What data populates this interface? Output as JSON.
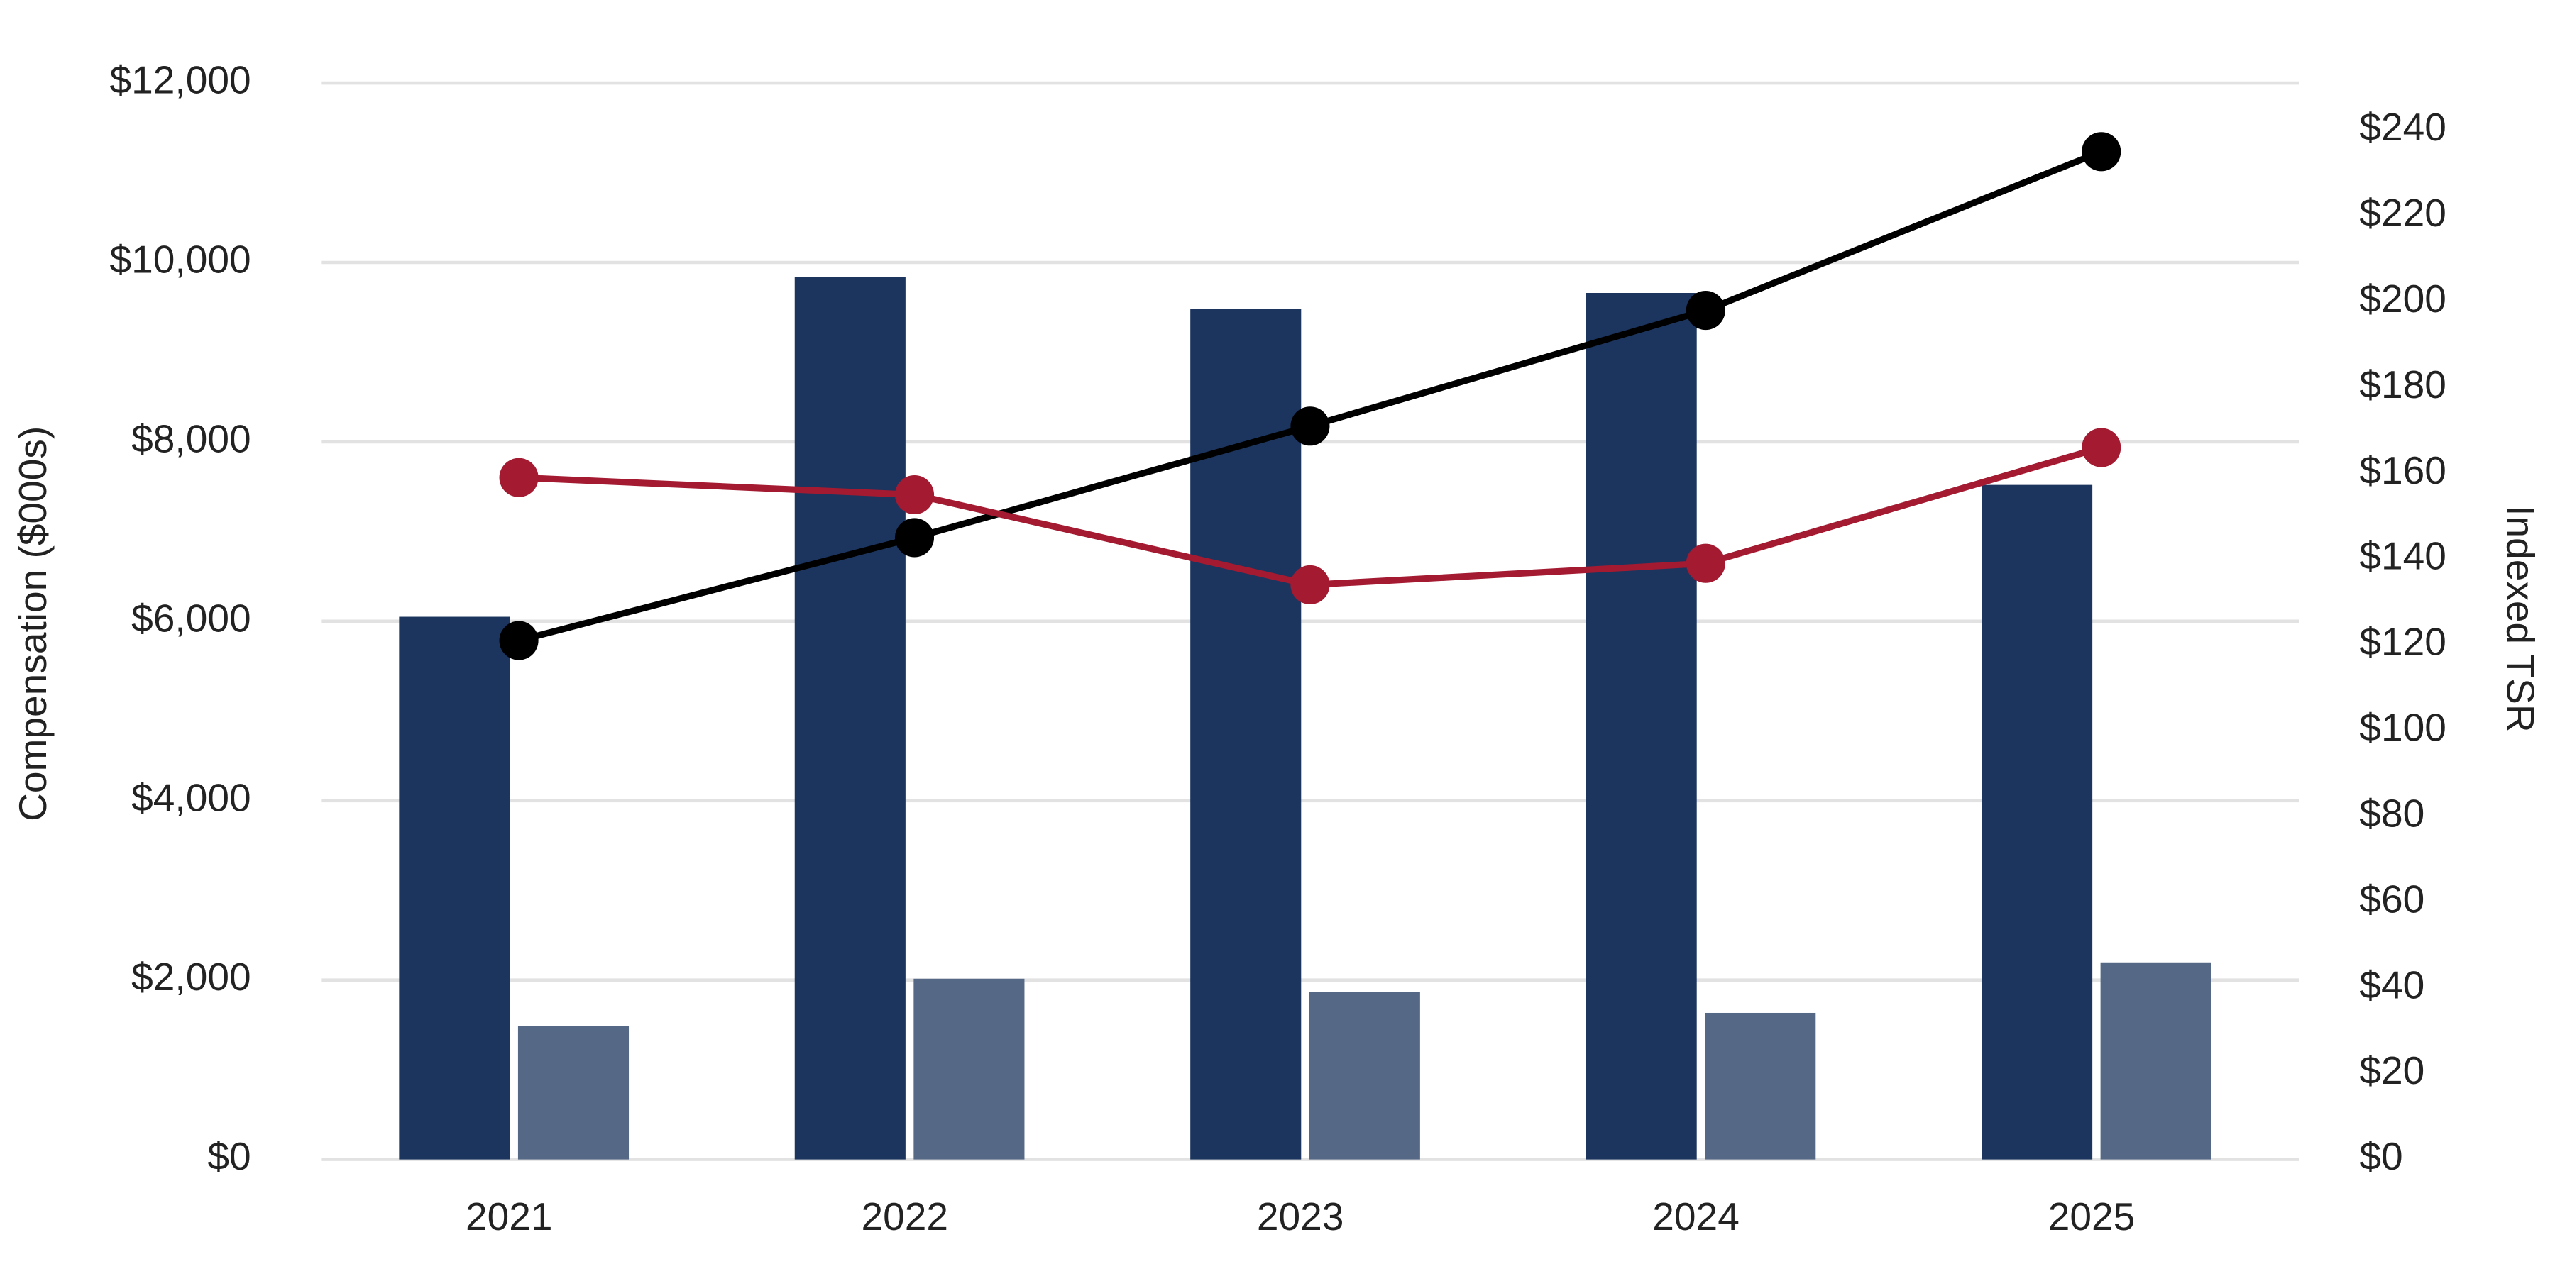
{
  "chart_data": {
    "type": "bar_line",
    "categories": [
      "2021",
      "2022",
      "2023",
      "2024",
      "2025"
    ],
    "y_label": "Compensation ($000s)",
    "y2_label": "Indexed TSR",
    "ylim": [
      0,
      12000
    ],
    "yticks": [
      {
        "value": 0,
        "label": "$0"
      },
      {
        "value": 2000,
        "label": "$2,000"
      },
      {
        "value": 4000,
        "label": "$4,000"
      },
      {
        "value": 6000,
        "label": "$6,000"
      },
      {
        "value": 8000,
        "label": "$8,000"
      },
      {
        "value": 10000,
        "label": "$10,000"
      },
      {
        "value": 12000,
        "label": "$12,000"
      }
    ],
    "y2lim": [
      0,
      251
    ],
    "y2ticks": [
      {
        "value": 0,
        "label": "$0"
      },
      {
        "value": 20,
        "label": "$20"
      },
      {
        "value": 40,
        "label": "$40"
      },
      {
        "value": 60,
        "label": "$60"
      },
      {
        "value": 80,
        "label": "$80"
      },
      {
        "value": 100,
        "label": "$100"
      },
      {
        "value": 120,
        "label": "$120"
      },
      {
        "value": 140,
        "label": "$140"
      },
      {
        "value": 160,
        "label": "$160"
      },
      {
        "value": 180,
        "label": "$180"
      },
      {
        "value": 200,
        "label": "$200"
      },
      {
        "value": 220,
        "label": "$220"
      },
      {
        "value": 240,
        "label": "$240"
      }
    ],
    "grid": true,
    "series": [
      {
        "type": "bar",
        "color": "#1c355e",
        "values": [
          6050,
          9840,
          9480,
          9660,
          7520
        ]
      },
      {
        "type": "bar",
        "color": "#556987",
        "values": [
          1490,
          2015,
          1870,
          1634,
          2197
        ]
      },
      {
        "type": "line",
        "axis": "y2",
        "color": "#000000",
        "values": [
          121,
          145,
          171,
          198,
          235
        ]
      },
      {
        "type": "line",
        "axis": "y2",
        "color": "#a31a31",
        "values": [
          159,
          155,
          134,
          139,
          166
        ]
      }
    ]
  }
}
